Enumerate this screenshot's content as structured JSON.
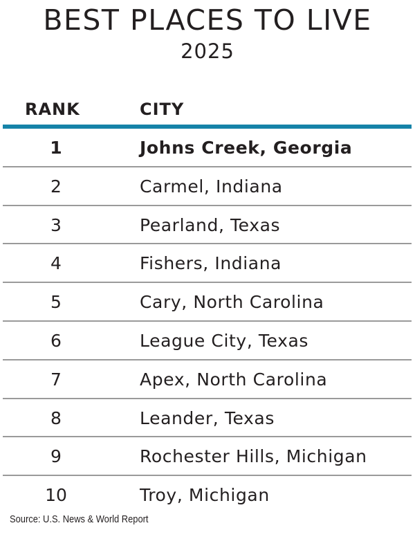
{
  "title": "BEST PLACES TO LIVE",
  "subtitle": "2025",
  "columns": {
    "rank": "RANK",
    "city": "CITY"
  },
  "accent_color": "#1683a8",
  "rows": [
    {
      "rank": "1",
      "city": "Johns Creek, Georgia"
    },
    {
      "rank": "2",
      "city": "Carmel, Indiana"
    },
    {
      "rank": "3",
      "city": "Pearland, Texas"
    },
    {
      "rank": "4",
      "city": "Fishers, Indiana"
    },
    {
      "rank": "5",
      "city": "Cary, North Carolina"
    },
    {
      "rank": "6",
      "city": "League City, Texas"
    },
    {
      "rank": "7",
      "city": "Apex, North Carolina"
    },
    {
      "rank": "8",
      "city": "Leander, Texas"
    },
    {
      "rank": "9",
      "city": "Rochester Hills, Michigan"
    },
    {
      "rank": "10",
      "city": "Troy, Michigan"
    }
  ],
  "source": "Source: U.S. News & World Report",
  "chart_data": {
    "type": "table",
    "title": "BEST PLACES TO LIVE",
    "subtitle": "2025",
    "columns": [
      "RANK",
      "CITY"
    ],
    "rows": [
      [
        1,
        "Johns Creek, Georgia"
      ],
      [
        2,
        "Carmel, Indiana"
      ],
      [
        3,
        "Pearland, Texas"
      ],
      [
        4,
        "Fishers, Indiana"
      ],
      [
        5,
        "Cary, North Carolina"
      ],
      [
        6,
        "League City, Texas"
      ],
      [
        7,
        "Apex, North Carolina"
      ],
      [
        8,
        "Leander, Texas"
      ],
      [
        9,
        "Rochester Hills, Michigan"
      ],
      [
        10,
        "Troy, Michigan"
      ]
    ],
    "source": "Source: U.S. News & World Report"
  }
}
